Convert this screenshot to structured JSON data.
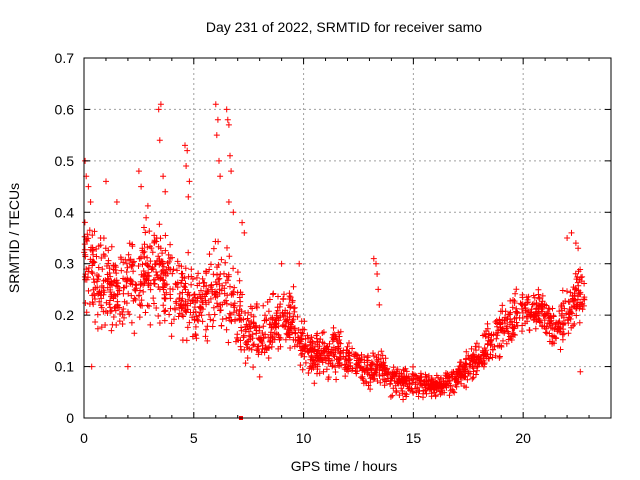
{
  "chart_data": {
    "type": "scatter",
    "title": "Day 231 of 2022, SRMTID for receiver samo",
    "xlabel": "GPS time / hours",
    "ylabel": "SRMTID / TECUs",
    "xlim": [
      0,
      24
    ],
    "ylim": [
      0,
      0.7
    ],
    "xticks": [
      0,
      5,
      10,
      15,
      20
    ],
    "xtick_labels": [
      "0",
      "5",
      "10",
      "15",
      "20"
    ],
    "yticks": [
      0,
      0.1,
      0.2,
      0.3,
      0.4,
      0.5,
      0.6,
      0.7
    ],
    "ytick_labels": [
      "0",
      "0.1",
      "0.2",
      "0.3",
      "0.4",
      "0.5",
      "0.6",
      "0.7"
    ],
    "grid": true,
    "marker": "+",
    "color": "#ff0000",
    "series": [
      {
        "name": "SRMTID",
        "profile_hours": [
          0,
          0.5,
          1,
          1.5,
          2,
          2.5,
          3,
          3.5,
          4,
          4.5,
          5,
          5.5,
          6,
          6.5,
          7,
          7.5,
          8,
          8.5,
          9,
          9.5,
          10,
          10.5,
          11,
          11.5,
          12,
          12.5,
          13,
          13.5,
          14,
          14.5,
          15,
          15.5,
          16,
          16.5,
          17,
          17.5,
          18,
          18.5,
          19,
          19.5,
          20,
          20.5,
          21,
          21.5,
          22,
          22.5,
          22.8
        ],
        "profile_center": [
          0.29,
          0.27,
          0.26,
          0.25,
          0.26,
          0.28,
          0.29,
          0.28,
          0.25,
          0.24,
          0.22,
          0.24,
          0.25,
          0.24,
          0.21,
          0.17,
          0.16,
          0.18,
          0.2,
          0.19,
          0.14,
          0.12,
          0.12,
          0.13,
          0.12,
          0.1,
          0.09,
          0.1,
          0.08,
          0.07,
          0.07,
          0.065,
          0.06,
          0.065,
          0.08,
          0.1,
          0.12,
          0.14,
          0.17,
          0.19,
          0.21,
          0.21,
          0.2,
          0.17,
          0.21,
          0.24,
          0.23
        ],
        "profile_spread": [
          0.1,
          0.09,
          0.08,
          0.07,
          0.08,
          0.09,
          0.09,
          0.09,
          0.08,
          0.08,
          0.07,
          0.08,
          0.08,
          0.08,
          0.07,
          0.06,
          0.05,
          0.05,
          0.05,
          0.05,
          0.04,
          0.04,
          0.04,
          0.04,
          0.04,
          0.03,
          0.03,
          0.03,
          0.025,
          0.025,
          0.025,
          0.02,
          0.02,
          0.02,
          0.025,
          0.03,
          0.035,
          0.04,
          0.04,
          0.04,
          0.04,
          0.04,
          0.04,
          0.04,
          0.05,
          0.05,
          0.05
        ],
        "spike_points": [
          [
            0.05,
            0.5
          ],
          [
            0.1,
            0.47
          ],
          [
            0.2,
            0.45
          ],
          [
            0.3,
            0.42
          ],
          [
            0.35,
            0.1
          ],
          [
            1.0,
            0.46
          ],
          [
            1.5,
            0.42
          ],
          [
            2.0,
            0.1
          ],
          [
            2.5,
            0.48
          ],
          [
            2.6,
            0.45
          ],
          [
            3.4,
            0.6
          ],
          [
            3.5,
            0.61
          ],
          [
            3.45,
            0.54
          ],
          [
            3.6,
            0.47
          ],
          [
            3.7,
            0.44
          ],
          [
            4.6,
            0.53
          ],
          [
            4.7,
            0.52
          ],
          [
            4.65,
            0.49
          ],
          [
            4.8,
            0.46
          ],
          [
            4.75,
            0.43
          ],
          [
            6.0,
            0.61
          ],
          [
            6.1,
            0.58
          ],
          [
            6.05,
            0.55
          ],
          [
            6.15,
            0.5
          ],
          [
            6.2,
            0.47
          ],
          [
            6.5,
            0.6
          ],
          [
            6.55,
            0.58
          ],
          [
            6.6,
            0.57
          ],
          [
            6.65,
            0.51
          ],
          [
            6.7,
            0.48
          ],
          [
            6.6,
            0.42
          ],
          [
            6.8,
            0.4
          ],
          [
            7.2,
            0.38
          ],
          [
            7.3,
            0.36
          ],
          [
            8.0,
            0.08
          ],
          [
            9.0,
            0.3
          ],
          [
            9.8,
            0.3
          ],
          [
            13.2,
            0.31
          ],
          [
            13.3,
            0.3
          ],
          [
            13.35,
            0.28
          ],
          [
            13.4,
            0.25
          ],
          [
            13.45,
            0.22
          ],
          [
            22.0,
            0.35
          ],
          [
            22.2,
            0.36
          ],
          [
            22.4,
            0.34
          ],
          [
            22.5,
            0.33
          ],
          [
            22.6,
            0.09
          ]
        ],
        "outlier_point": [
          7.15,
          0.0
        ]
      }
    ]
  }
}
